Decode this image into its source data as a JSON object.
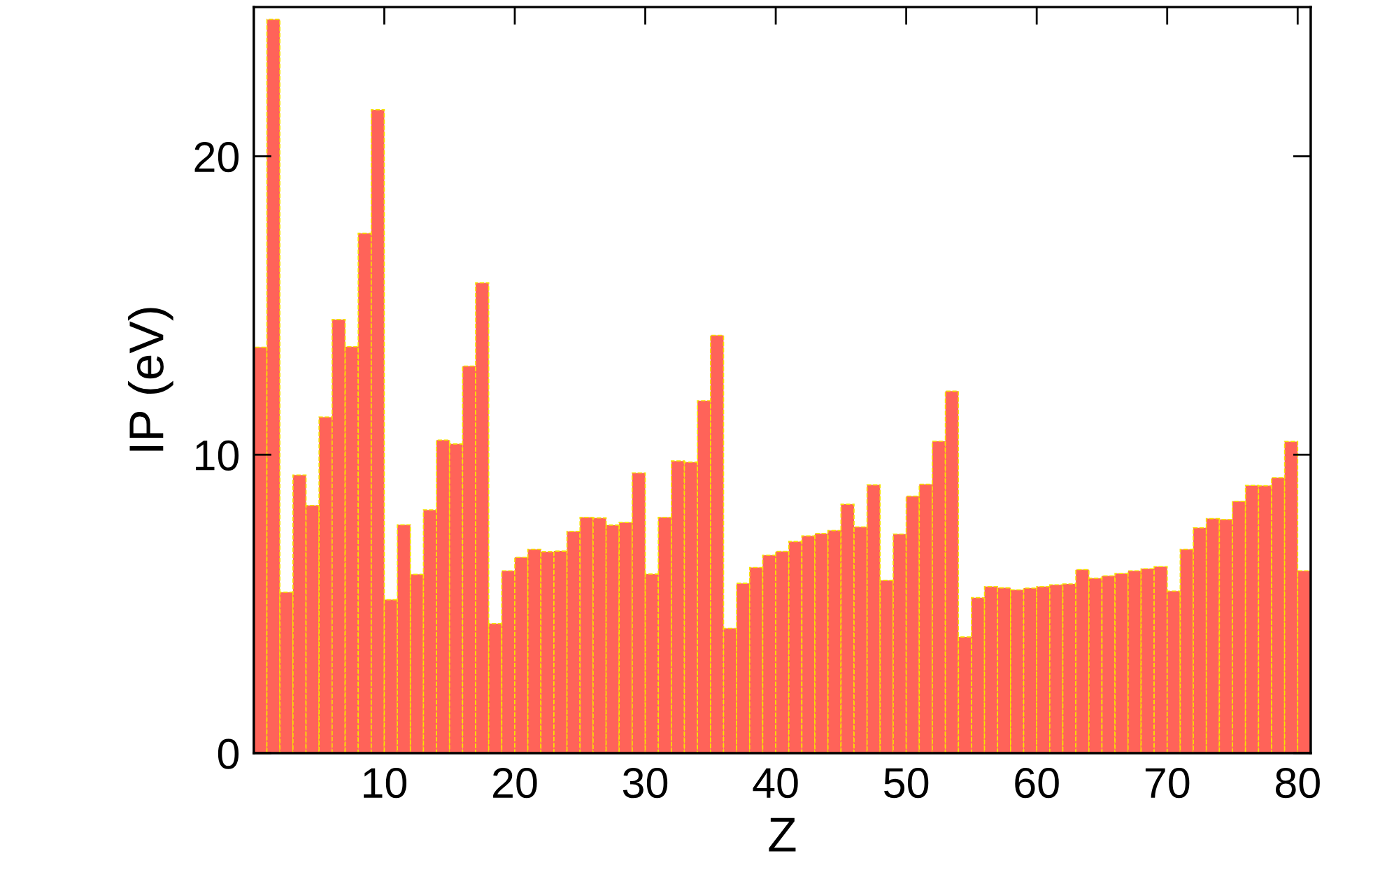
{
  "chart_data": {
    "type": "histogram",
    "xlabel": "Z",
    "ylabel": "IP (eV)",
    "bins": [
      0,
      1,
      2,
      3,
      4,
      5,
      6,
      7,
      8,
      9,
      10,
      11,
      12,
      13,
      14,
      15,
      16,
      17,
      18,
      19,
      20,
      21,
      22,
      23,
      24,
      25,
      26,
      27,
      28,
      29,
      30,
      31,
      32,
      33,
      34,
      35,
      36,
      37,
      38,
      39,
      40,
      41,
      42,
      43,
      44,
      45,
      46,
      47,
      48,
      49,
      50,
      51,
      52,
      53,
      54,
      55,
      56,
      57,
      58,
      59,
      60,
      61,
      62,
      63,
      64,
      65,
      66,
      67,
      68,
      69,
      70,
      71,
      72,
      73,
      74,
      75,
      76,
      77,
      78,
      79,
      80,
      81
    ],
    "values": [
      13.6,
      24.59,
      5.39,
      9.32,
      8.3,
      11.26,
      14.53,
      13.62,
      17.42,
      21.56,
      5.14,
      7.65,
      5.99,
      8.15,
      10.49,
      10.36,
      12.97,
      15.76,
      4.34,
      6.11,
      6.56,
      6.83,
      6.75,
      6.77,
      7.43,
      7.9,
      7.88,
      7.64,
      7.73,
      9.39,
      6.0,
      7.9,
      9.79,
      9.75,
      11.81,
      14.0,
      4.18,
      5.69,
      6.22,
      6.63,
      6.76,
      7.09,
      7.28,
      7.36,
      7.46,
      8.34,
      7.58,
      8.99,
      5.79,
      7.34,
      8.61,
      9.01,
      10.45,
      12.13,
      3.89,
      5.21,
      5.58,
      5.54,
      5.47,
      5.53,
      5.58,
      5.64,
      5.67,
      6.15,
      5.86,
      5.94,
      6.02,
      6.11,
      6.18,
      6.25,
      5.43,
      6.83,
      7.55,
      7.86,
      7.83,
      8.44,
      8.97,
      8.96,
      9.23,
      10.44,
      6.11
    ],
    "color": "#ff6359",
    "line_style": "dashed",
    "xlim": [
      0,
      81
    ],
    "xticks": [
      10,
      20,
      30,
      40,
      50,
      60,
      70,
      80
    ],
    "ylim": [
      0,
      25
    ],
    "yticks": [
      0,
      10,
      20
    ],
    "grid": false,
    "legend": false
  }
}
